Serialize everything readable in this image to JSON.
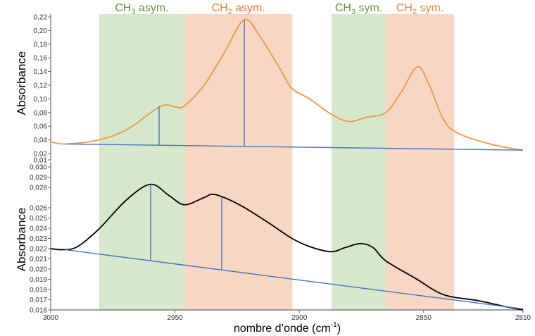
{
  "chart_data": [
    {
      "type": "line",
      "title": "",
      "ylabel": "Absorbance",
      "xlabel": "nombre d’onde (cm-1)",
      "xlim": [
        3000,
        2810
      ],
      "ylim": [
        0.01,
        0.22
      ],
      "yticks": [
        "0,01",
        "0,02",
        "0,04",
        "0,06",
        "0,08",
        "0,10",
        "0,12",
        "0,14",
        "0,16",
        "0,18",
        "0,20",
        "0,22"
      ],
      "ytick_values": [
        0.01,
        0.02,
        0.04,
        0.06,
        0.08,
        0.1,
        0.12,
        0.14,
        0.16,
        0.18,
        0.2,
        0.22
      ],
      "series": [
        {
          "name": "spectrum",
          "color": "#f0963c",
          "x": [
            3000,
            2993.5,
            2980.7,
            2969.4,
            2955.8,
            2949.6,
            2946.2,
            2938.3,
            2929.8,
            2922.1,
            2915.6,
            2907.1,
            2902.9,
            2895.8,
            2887.3,
            2880.2,
            2873.1,
            2865.2,
            2859.0,
            2852.5,
            2847.7,
            2842.0,
            2836.3,
            2822.2,
            2810
          ],
          "y": [
            0.037,
            0.034,
            0.04,
            0.055,
            0.089,
            0.088,
            0.09,
            0.12,
            0.17,
            0.216,
            0.19,
            0.14,
            0.115,
            0.1,
            0.078,
            0.067,
            0.073,
            0.08,
            0.11,
            0.147,
            0.12,
            0.07,
            0.05,
            0.033,
            0.025
          ]
        },
        {
          "name": "baseline",
          "color": "#4472c4",
          "x": [
            2993.5,
            2810
          ],
          "y": [
            0.034,
            0.025
          ]
        }
      ],
      "markers": [
        {
          "x": 2956.4,
          "y": 0.089
        },
        {
          "x": 2922.1,
          "y": 0.216
        }
      ]
    },
    {
      "type": "line",
      "ylabel": "Absorbance",
      "xlim": [
        3000,
        2810
      ],
      "ylim": [
        0.016,
        0.03
      ],
      "yticks": [
        "0,016",
        "0,017",
        "0,018",
        "0,019",
        "0,020",
        "0,021",
        "0,022",
        "0,023",
        "0,024",
        "0,025",
        "0,026",
        "0,028",
        "0,029",
        "0,030"
      ],
      "ytick_values": [
        0.016,
        0.017,
        0.018,
        0.019,
        0.02,
        0.021,
        0.022,
        0.023,
        0.024,
        0.025,
        0.026,
        0.028,
        0.029,
        0.03
      ],
      "xticks": [
        "3000",
        "2950",
        "2900",
        "2850",
        "2810"
      ],
      "xtick_values": [
        3000,
        2950,
        2900,
        2850,
        2810
      ],
      "series": [
        {
          "name": "spectrum",
          "color": "#000000",
          "x": [
            3000,
            2994.9,
            2989.2,
            2980.7,
            2969.4,
            2959.8,
            2952.4,
            2946.2,
            2938.3,
            2934.0,
            2924.1,
            2912.8,
            2902.9,
            2895.8,
            2887.3,
            2881.6,
            2875.4,
            2870.3,
            2865.2,
            2853.3,
            2842.0,
            2827.8,
            2816.5,
            2810
          ],
          "y": [
            0.022,
            0.0219,
            0.0222,
            0.0239,
            0.0268,
            0.0283,
            0.0272,
            0.0263,
            0.027,
            0.0273,
            0.0263,
            0.0246,
            0.023,
            0.0222,
            0.0217,
            0.0221,
            0.0225,
            0.0221,
            0.0208,
            0.0191,
            0.0175,
            0.0169,
            0.0163,
            0.016
          ]
        },
        {
          "name": "baseline",
          "color": "#4472c4",
          "x": [
            2994.3,
            2810
          ],
          "y": [
            0.0219,
            0.0161
          ]
        }
      ],
      "markers": [
        {
          "x": 2959.8,
          "y": 0.0283
        },
        {
          "x": 2931.2,
          "y": 0.0271
        }
      ]
    }
  ],
  "bands": [
    {
      "label": "CH",
      "sub": "3",
      "suffix": " asym.",
      "from": 2980.5,
      "to": 2946.2,
      "fill": "#d5e8cb",
      "text_color": "#5a9a3a"
    },
    {
      "label": "CH",
      "sub": "2",
      "suffix": " asym.",
      "from": 2946.2,
      "to": 2902.8,
      "fill": "#f8d6c1",
      "text_color": "#f07f2e"
    },
    {
      "label": "CH",
      "sub": "3",
      "suffix": " sym.",
      "from": 2887.0,
      "to": 2865.2,
      "fill": "#d5e8cb",
      "text_color": "#5a9a3a"
    },
    {
      "label": "CH",
      "sub": "2",
      "suffix": " sym.",
      "from": 2865.2,
      "to": 2837.7,
      "fill": "#f8d6c1",
      "text_color": "#f07f2e"
    }
  ],
  "xlabel_main": "nombre d’onde (cm",
  "xlabel_sup": "-1",
  "xlabel_end": ")"
}
